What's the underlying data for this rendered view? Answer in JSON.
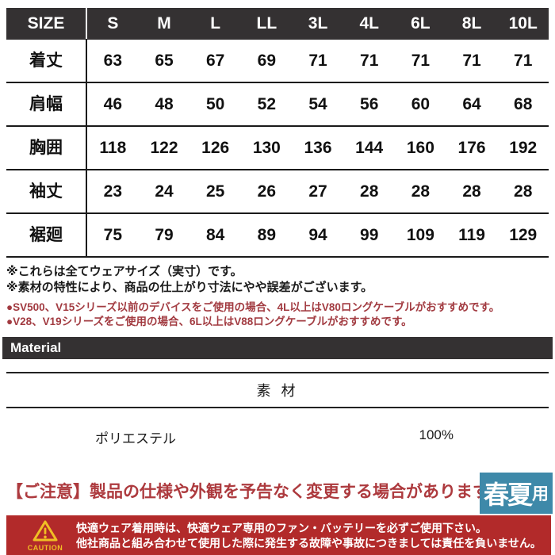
{
  "size_table": {
    "header_label": "SIZE",
    "sizes": [
      "S",
      "M",
      "L",
      "LL",
      "3L",
      "4L",
      "6L",
      "8L",
      "10L"
    ],
    "rows": [
      {
        "label": "着丈",
        "values": [
          "63",
          "65",
          "67",
          "69",
          "71",
          "71",
          "71",
          "71",
          "71"
        ]
      },
      {
        "label": "肩幅",
        "values": [
          "46",
          "48",
          "50",
          "52",
          "54",
          "56",
          "60",
          "64",
          "68"
        ]
      },
      {
        "label": "胸囲",
        "values": [
          "118",
          "122",
          "126",
          "130",
          "136",
          "144",
          "160",
          "176",
          "192"
        ]
      },
      {
        "label": "袖丈",
        "values": [
          "23",
          "24",
          "25",
          "26",
          "27",
          "28",
          "28",
          "28",
          "28"
        ]
      },
      {
        "label": "裾廻",
        "values": [
          "75",
          "79",
          "84",
          "89",
          "94",
          "99",
          "109",
          "119",
          "129"
        ]
      }
    ]
  },
  "notes": {
    "plain": [
      "※これらは全てウェアサイズ（実寸）です。",
      "※素材の特性により、商品の仕上がり寸法にやや誤差がございます。"
    ],
    "highlight": [
      "●SV500、V15シリーズ以前のデバイスをご使用の場合、4L以上はV80ロングケーブルがおすすめです。",
      "●V28、V19シリーズをご使用の場合、6L以上はV88ロングケーブルがおすすめです。"
    ]
  },
  "material": {
    "bar_label": "Material",
    "column_header": "素 材",
    "rows": [
      {
        "name": "ポリエステル",
        "value": "100%"
      }
    ]
  },
  "notice": {
    "text": "【ご注意】製品の仕様や外観を予告なく変更する場合があります。"
  },
  "season_badge": {
    "main": "春夏",
    "suffix": "用"
  },
  "caution_box": {
    "label": "CAUTION",
    "lines": [
      "快適ウェア着用時は、快適ウェア専用のファン・バッテリーを必ずご使用下さい。",
      "他社商品と組み合わせて使用した際に発生する故障や事故につきましては責任を負いません。"
    ]
  },
  "colors": {
    "dark": "#343132",
    "red_note": "#a23b41",
    "red_notice": "#ad3a3e",
    "caution_red": "#b22a2a",
    "warn_yellow": "#f0bf24",
    "badge_blue": "#3e89a9"
  }
}
